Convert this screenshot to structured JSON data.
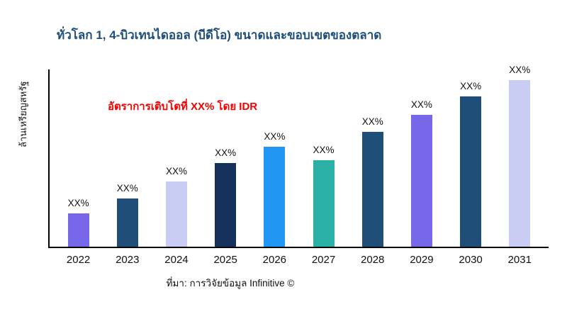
{
  "title": "ทั่วโลก 1, 4-บิวเทนไดออล (บีดีโอ) ขนาดและขอบเขตของตลาด",
  "y_axis_label": "ล้านเหรียญสหรัฐ",
  "annotation": "อัตราการเติบโตที่ XX% โดย IDR",
  "annotation_color": "#f40000",
  "title_color": "#1e4e79",
  "source": "ที่มา: การวิจัยข้อมูล Infinitive ©",
  "chart_data": {
    "type": "bar",
    "title": "ทั่วโลก 1, 4-บิวเทนไดออล (บีดีโอ) ขนาดและขอบเขตของตลาด",
    "xlabel": "",
    "ylabel": "ล้านเหรียญสหรัฐ",
    "categories": [
      "2022",
      "2023",
      "2024",
      "2025",
      "2026",
      "2027",
      "2028",
      "2029",
      "2030",
      "2031"
    ],
    "values": [
      20,
      29,
      39,
      50,
      60,
      52,
      69,
      79,
      90,
      100
    ],
    "bar_labels": [
      "XX%",
      "XX%",
      "XX%",
      "XX%",
      "XX%",
      "XX%",
      "XX%",
      "XX%",
      "XX%",
      "XX%"
    ],
    "colors": [
      "#7668e8",
      "#1f4e79",
      "#c9cdf3",
      "#14315c",
      "#2196f3",
      "#2ab0a5",
      "#1f4e79",
      "#7668e8",
      "#1f4e79",
      "#c9cdf3"
    ],
    "ylim": [
      0,
      100
    ],
    "grid": false,
    "legend": "none",
    "annotation": "อัตราการเติบโตที่ XX% โดย IDR",
    "note": "Bar values are masked as XX% in the source image; 'values' are relative height estimates with the tallest bar (2031) = 100."
  }
}
